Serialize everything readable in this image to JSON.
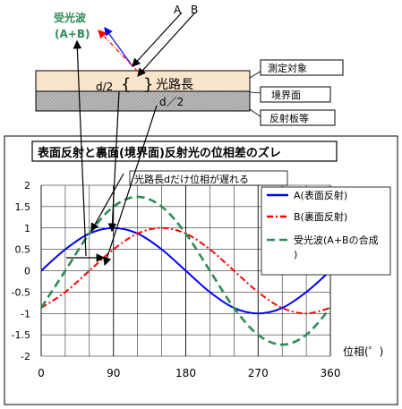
{
  "diagram": {
    "incident_labels": [
      "A",
      "B"
    ],
    "received_wave_label": "受光波",
    "received_wave_sub": "(A+B)",
    "d_half_upper": "d/2",
    "path_length_label": "光路長",
    "d_half_lower": "d／2",
    "layers": {
      "target": "測定対象",
      "boundary": "境界面",
      "reflector": "反射板等"
    }
  },
  "chart_data": {
    "type": "line",
    "title": "表面反射と裏面(境界面)反射光の位相差のズレ",
    "annotation": "光路長dだけ位相が遅れる",
    "xlabel": "位相(゜)",
    "ylabel": "",
    "xlim": [
      0,
      360
    ],
    "ylim": [
      -2,
      2
    ],
    "xticks": [
      0,
      90,
      180,
      270,
      360
    ],
    "yticks": [
      2,
      1.5,
      1,
      0.5,
      0,
      -0.5,
      -1,
      -1.5,
      -2
    ],
    "ytick_labels": [
      "2",
      "1.5",
      "1",
      "0.5",
      "0",
      "-0.5",
      "-1",
      "-1.5",
      "-2"
    ],
    "grid": true,
    "legend_position": "top-right",
    "series": [
      {
        "name": "A(表面反射)",
        "color": "#0000ff",
        "dash": "solid",
        "x": [
          0,
          30,
          60,
          90,
          120,
          150,
          180,
          210,
          240,
          270,
          300,
          330,
          360
        ],
        "values": [
          0,
          0.5,
          0.87,
          1,
          0.87,
          0.5,
          0,
          -0.5,
          -0.87,
          -1,
          -0.87,
          -0.5,
          0
        ]
      },
      {
        "name": "B(裏面反射)",
        "color": "#ff0000",
        "dash": "dashdot",
        "x": [
          0,
          30,
          60,
          90,
          120,
          150,
          180,
          210,
          240,
          270,
          300,
          330,
          360
        ],
        "values": [
          -0.87,
          -0.5,
          0,
          0.5,
          0.87,
          1,
          0.87,
          0.5,
          0,
          -0.5,
          -0.87,
          -1,
          -0.87
        ]
      },
      {
        "name": "受光波(A+Bの合成)",
        "color": "#2e8b57",
        "dash": "dashed",
        "x": [
          0,
          30,
          60,
          90,
          120,
          150,
          180,
          210,
          240,
          270,
          300,
          330,
          360
        ],
        "values": [
          -0.87,
          0,
          0.87,
          1.5,
          1.73,
          1.5,
          0.87,
          0,
          -0.87,
          -1.5,
          -1.73,
          -1.5,
          -0.87
        ]
      }
    ]
  },
  "colors": {
    "target_fill": "#f9e4cc",
    "boundary_fill": "#b9b9b9",
    "received_text": "#2e8b57",
    "incident_blue": "#0000ff",
    "incident_red": "#ff0000"
  }
}
